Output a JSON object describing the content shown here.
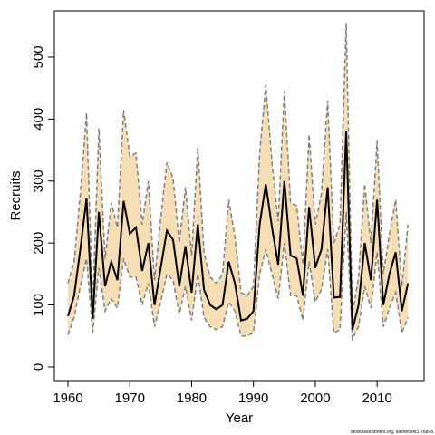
{
  "chart_data": {
    "type": "line",
    "x_label": "Year",
    "y_label": "Recruits",
    "footnote": "stockassessment.org, saithefleet1, r6898",
    "x": [
      1960,
      1961,
      1962,
      1963,
      1964,
      1965,
      1966,
      1967,
      1968,
      1969,
      1970,
      1971,
      1972,
      1973,
      1974,
      1975,
      1976,
      1977,
      1978,
      1979,
      1980,
      1981,
      1982,
      1983,
      1984,
      1985,
      1986,
      1987,
      1988,
      1989,
      1990,
      1991,
      1992,
      1993,
      1994,
      1995,
      1996,
      1997,
      1998,
      1999,
      2000,
      2001,
      2002,
      2003,
      2004,
      2005,
      2006,
      2007,
      2008,
      2009,
      2010,
      2011,
      2012,
      2013,
      2014,
      2015
    ],
    "values": [
      82,
      115,
      190,
      272,
      78,
      250,
      130,
      170,
      140,
      268,
      215,
      225,
      155,
      200,
      100,
      160,
      220,
      205,
      130,
      195,
      120,
      230,
      125,
      100,
      93,
      100,
      170,
      135,
      75,
      78,
      90,
      230,
      295,
      225,
      165,
      300,
      180,
      175,
      115,
      258,
      160,
      190,
      290,
      112,
      113,
      380,
      60,
      100,
      200,
      140,
      270,
      100,
      150,
      185,
      90,
      135
    ],
    "upper": [
      135,
      170,
      280,
      410,
      100,
      385,
      175,
      265,
      225,
      415,
      340,
      345,
      230,
      300,
      140,
      240,
      330,
      305,
      200,
      290,
      180,
      355,
      185,
      145,
      135,
      150,
      270,
      210,
      120,
      115,
      130,
      345,
      455,
      330,
      235,
      445,
      265,
      260,
      165,
      375,
      230,
      280,
      430,
      200,
      230,
      555,
      85,
      145,
      295,
      200,
      365,
      150,
      215,
      270,
      130,
      230
    ],
    "lower": [
      52,
      80,
      130,
      175,
      55,
      160,
      90,
      110,
      95,
      175,
      145,
      145,
      100,
      135,
      65,
      105,
      150,
      140,
      85,
      130,
      75,
      150,
      80,
      65,
      60,
      65,
      105,
      90,
      50,
      50,
      55,
      150,
      190,
      150,
      110,
      200,
      115,
      115,
      75,
      170,
      105,
      125,
      190,
      55,
      60,
      250,
      45,
      65,
      130,
      95,
      185,
      65,
      95,
      120,
      55,
      80
    ],
    "color": "#000000",
    "band_color": "#f5deb3",
    "bound_color": "#808080",
    "xlim": [
      1957.8,
      2017.6
    ],
    "xticks": [
      1960,
      1970,
      1980,
      1990,
      2000,
      2010
    ],
    "ylim": [
      -22,
      574.5
    ],
    "yticks": [
      0,
      100,
      200,
      300,
      400,
      500
    ]
  }
}
